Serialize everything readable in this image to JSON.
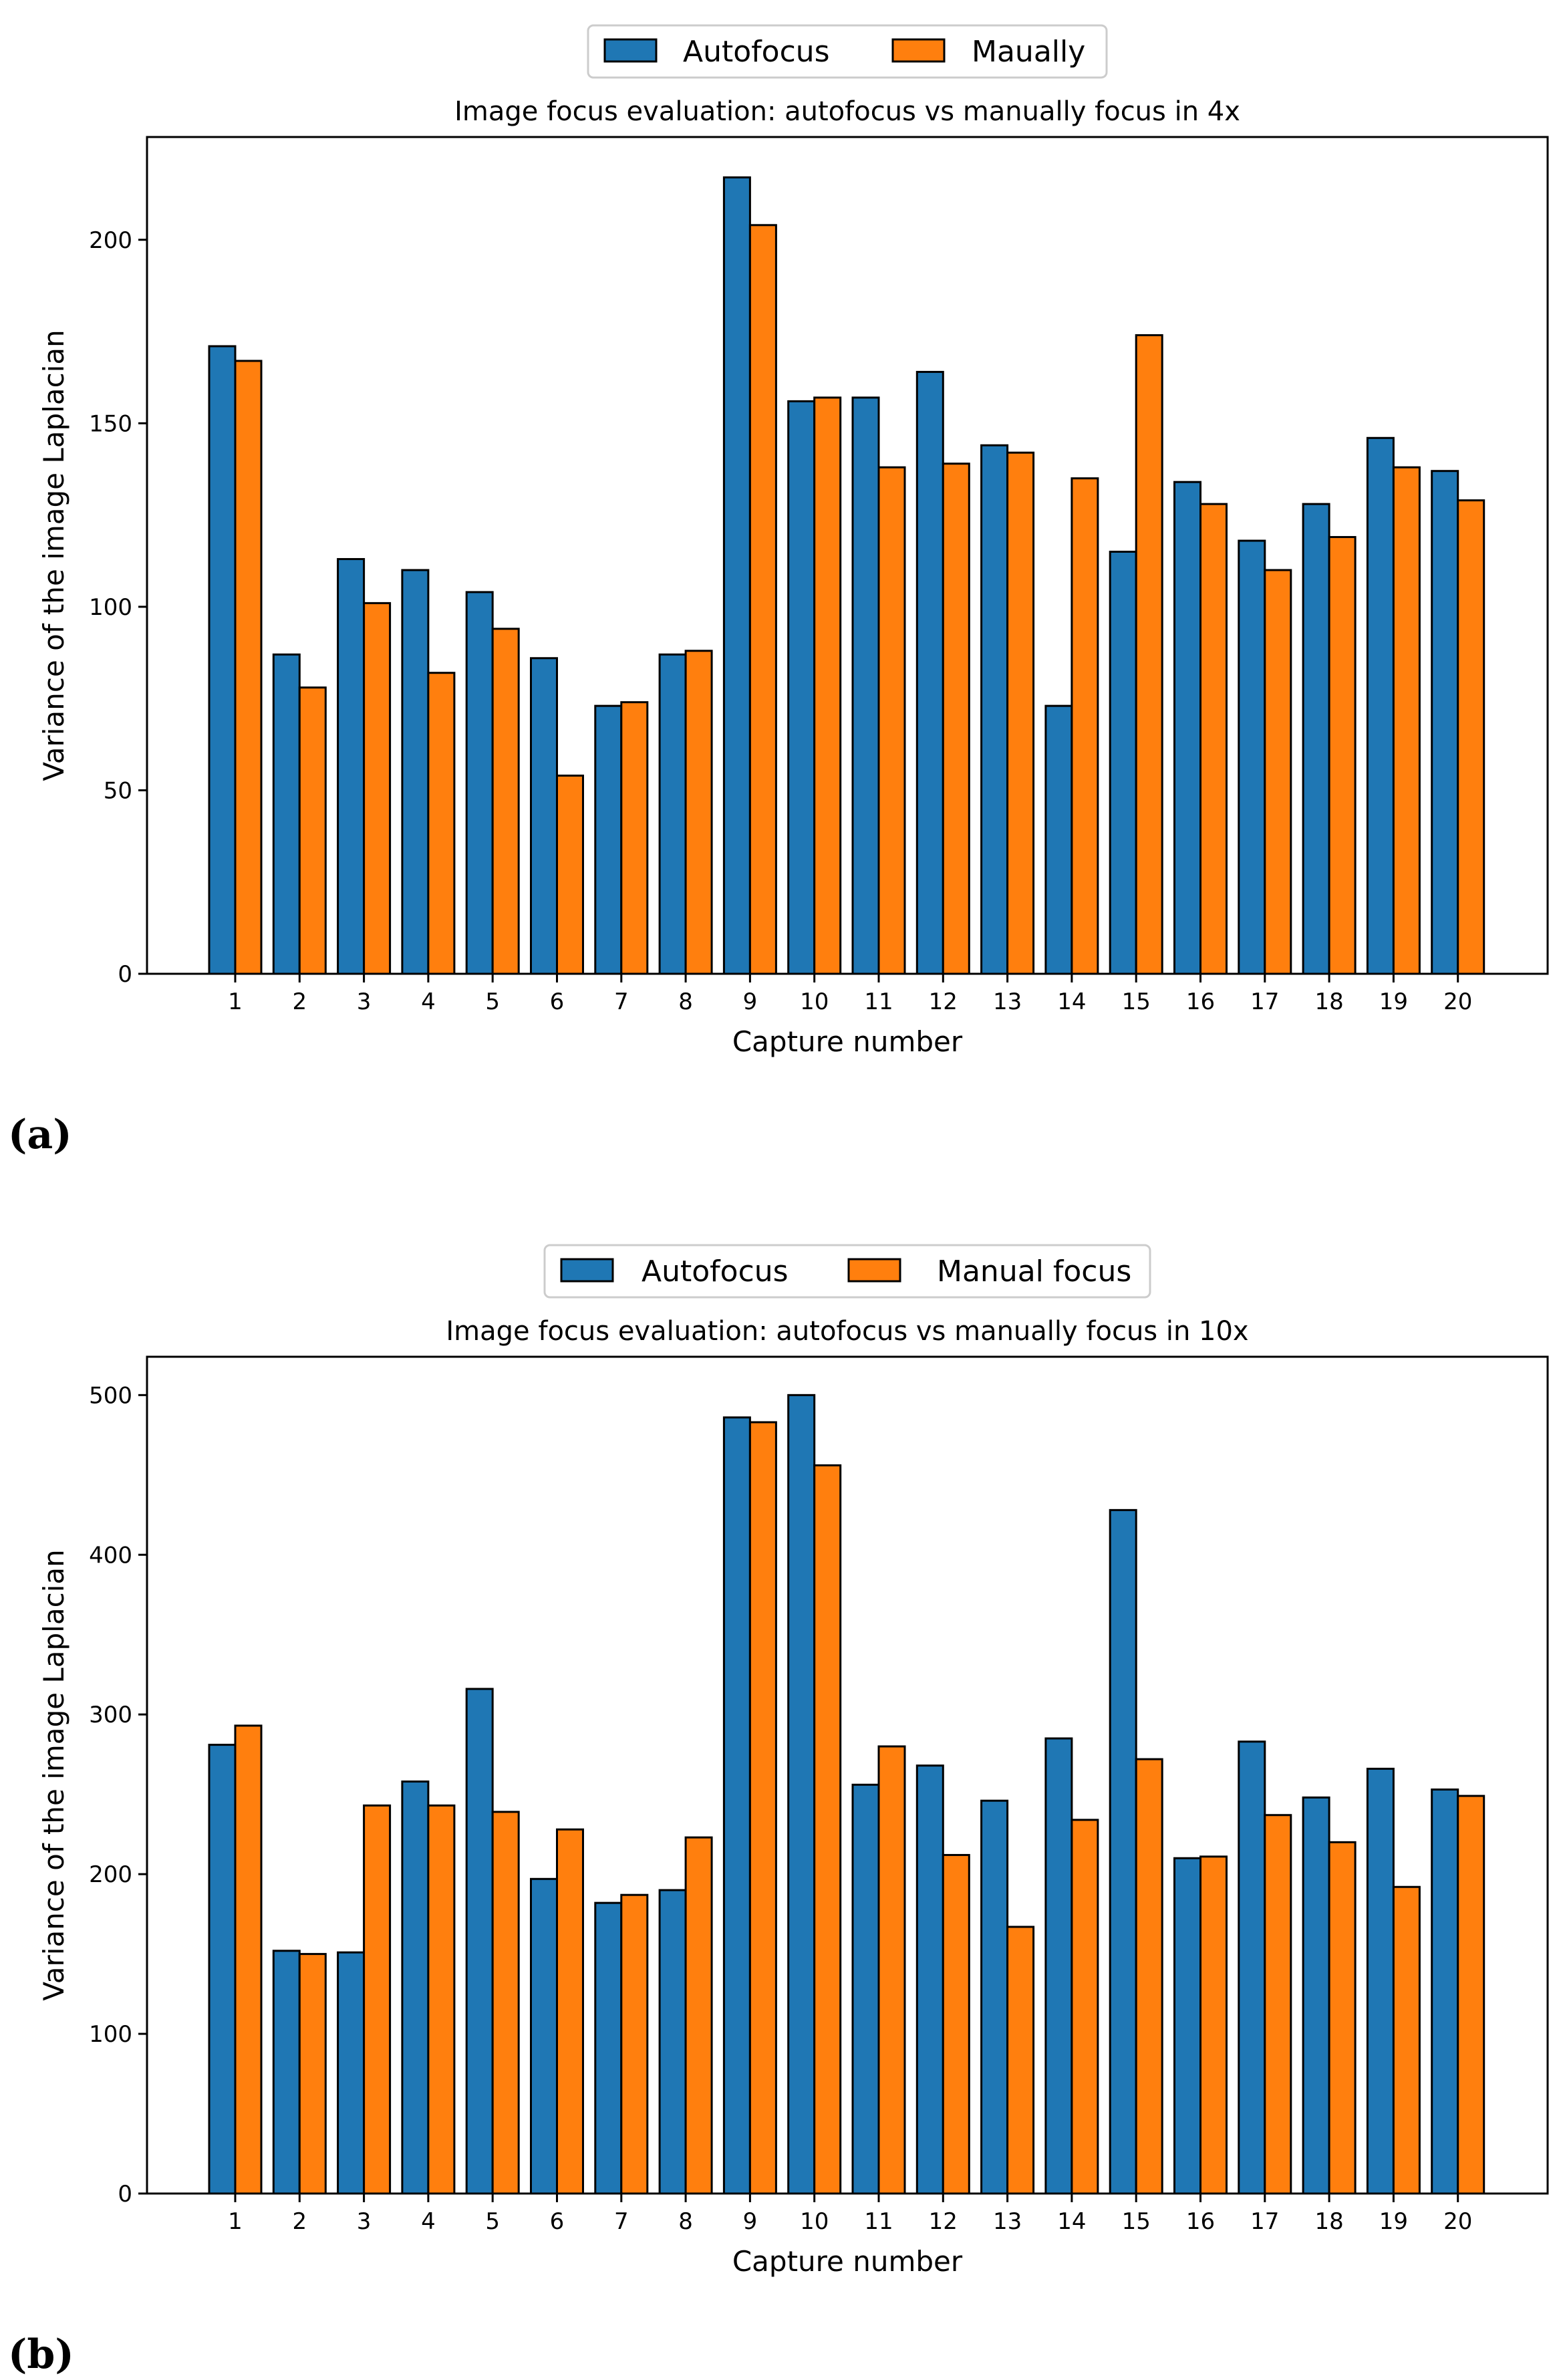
{
  "chart_data": [
    {
      "type": "bar",
      "panel": "(a)",
      "title": "Image focus evaluation: autofocus vs manually focus in 4x",
      "xlabel": "Capture number",
      "ylabel": "Variance of the image Laplacian",
      "ylim": [
        0,
        228
      ],
      "yticks": [
        0,
        50,
        100,
        150,
        200
      ],
      "legend_position": "top-center",
      "categories": [
        "1",
        "2",
        "3",
        "4",
        "5",
        "6",
        "7",
        "8",
        "9",
        "10",
        "11",
        "12",
        "13",
        "14",
        "15",
        "16",
        "17",
        "18",
        "19",
        "20"
      ],
      "series": [
        {
          "name": "Autofocus",
          "color": "#1f77b4",
          "values": [
            171,
            87,
            113,
            110,
            104,
            86,
            73,
            87,
            217,
            156,
            157,
            164,
            144,
            73,
            115,
            134,
            118,
            128,
            146,
            137
          ]
        },
        {
          "name": "Maually",
          "color": "#ff7f0e",
          "values": [
            167,
            78,
            101,
            82,
            94,
            54,
            74,
            88,
            204,
            157,
            138,
            139,
            142,
            135,
            174,
            128,
            110,
            119,
            138,
            129
          ]
        }
      ]
    },
    {
      "type": "bar",
      "panel": "(b)",
      "title": "Image focus evaluation: autofocus vs manually focus in 10x",
      "xlabel": "Capture number",
      "ylabel": "Variance of the image Laplacian",
      "ylim": [
        0,
        524
      ],
      "yticks": [
        0,
        100,
        200,
        300,
        400,
        500
      ],
      "legend_position": "top-center",
      "categories": [
        "1",
        "2",
        "3",
        "4",
        "5",
        "6",
        "7",
        "8",
        "9",
        "10",
        "11",
        "12",
        "13",
        "14",
        "15",
        "16",
        "17",
        "18",
        "19",
        "20"
      ],
      "series": [
        {
          "name": "Autofocus",
          "color": "#1f77b4",
          "values": [
            281,
            152,
            151,
            258,
            316,
            197,
            182,
            190,
            486,
            500,
            256,
            268,
            246,
            285,
            428,
            210,
            283,
            248,
            266,
            253
          ]
        },
        {
          "name": "Manual focus",
          "color": "#ff7f0e",
          "values": [
            293,
            150,
            243,
            243,
            239,
            228,
            187,
            223,
            483,
            456,
            280,
            212,
            167,
            234,
            272,
            211,
            237,
            220,
            192,
            249
          ]
        }
      ]
    }
  ]
}
